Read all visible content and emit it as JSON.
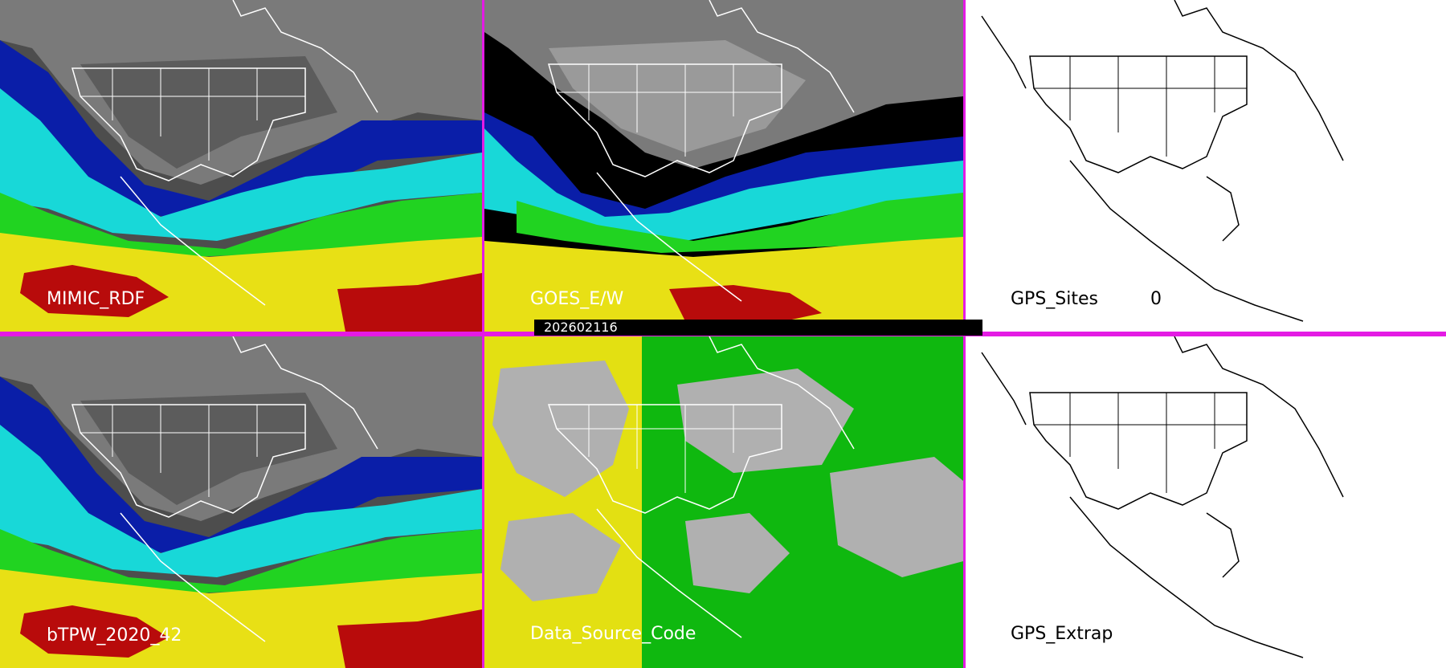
{
  "panels": {
    "mimic": {
      "label": "MIMIC_RDF"
    },
    "goes": {
      "label": "GOES_E/W"
    },
    "gps_sites": {
      "label": "GPS_Sites",
      "count": "0"
    },
    "btpw": {
      "label": "bTPW_2020_42"
    },
    "source": {
      "label": "Data_Source_Code"
    },
    "gps_extrap": {
      "label": "GPS_Extrap"
    }
  },
  "timestamp": "202602116",
  "colors": {
    "divider": "#e41be4",
    "tpw_low": "#808080",
    "tpw_blue": "#0a1ea8",
    "tpw_cyan": "#18d8d8",
    "tpw_green": "#21d321",
    "tpw_yellow": "#e8e015",
    "tpw_red": "#b80b0b",
    "source_yellow": "#e3e012",
    "source_green": "#0fb80f",
    "source_gray": "#b0b0b0"
  }
}
